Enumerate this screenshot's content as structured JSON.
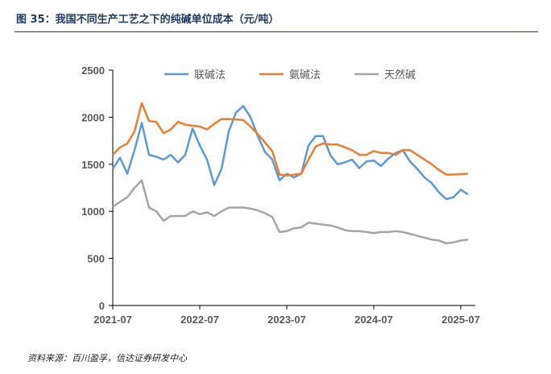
{
  "title": "图 35：我国不同生产工艺之下的纯碱单位成本（元/吨）",
  "source": "资料来源：百川盈孚，信达证券研发中心",
  "chart_data": {
    "type": "line",
    "title": "我国不同生产工艺之下的纯碱单位成本（元/吨）",
    "xlabel": "",
    "ylabel": "",
    "ylim": [
      0,
      2500
    ],
    "yticks": [
      "0",
      "500",
      "1000",
      "1500",
      "2000",
      "2500"
    ],
    "xticks": [
      "2021-07",
      "2022-07",
      "2023-07",
      "2024-07",
      "2025-07"
    ],
    "x_start": "2021-07",
    "x_frequency": "monthly",
    "legend_position": "top",
    "grid": false,
    "series": [
      {
        "name": "联碱法",
        "color": "#5b9bd5",
        "values": [
          1450,
          1570,
          1400,
          1650,
          1940,
          1600,
          1580,
          1550,
          1600,
          1520,
          1600,
          1880,
          1700,
          1550,
          1280,
          1450,
          1850,
          2050,
          2120,
          2000,
          1800,
          1630,
          1550,
          1330,
          1400,
          1360,
          1400,
          1700,
          1800,
          1800,
          1600,
          1500,
          1520,
          1550,
          1460,
          1530,
          1540,
          1480,
          1560,
          1620,
          1650,
          1530,
          1450,
          1360,
          1300,
          1200,
          1130,
          1150,
          1230,
          1180
        ]
      },
      {
        "name": "氨碱法",
        "color": "#ed7d31",
        "values": [
          1600,
          1680,
          1720,
          1850,
          2150,
          1960,
          1950,
          1830,
          1870,
          1950,
          1920,
          1910,
          1900,
          1870,
          1930,
          1980,
          1980,
          1975,
          1970,
          1900,
          1820,
          1730,
          1640,
          1390,
          1380,
          1390,
          1400,
          1550,
          1690,
          1720,
          1710,
          1710,
          1680,
          1650,
          1600,
          1600,
          1640,
          1620,
          1620,
          1600,
          1650,
          1650,
          1600,
          1550,
          1500,
          1440,
          1390,
          1390,
          1395,
          1400
        ]
      },
      {
        "name": "天然碱",
        "color": "#a5a5a5",
        "values": [
          1050,
          1100,
          1150,
          1250,
          1330,
          1040,
          1000,
          900,
          950,
          950,
          950,
          1000,
          970,
          990,
          950,
          1000,
          1040,
          1040,
          1040,
          1030,
          1010,
          980,
          940,
          780,
          790,
          820,
          830,
          880,
          870,
          860,
          850,
          830,
          800,
          790,
          790,
          780,
          770,
          780,
          780,
          790,
          780,
          760,
          740,
          720,
          700,
          690,
          660,
          670,
          690,
          700
        ]
      }
    ]
  }
}
